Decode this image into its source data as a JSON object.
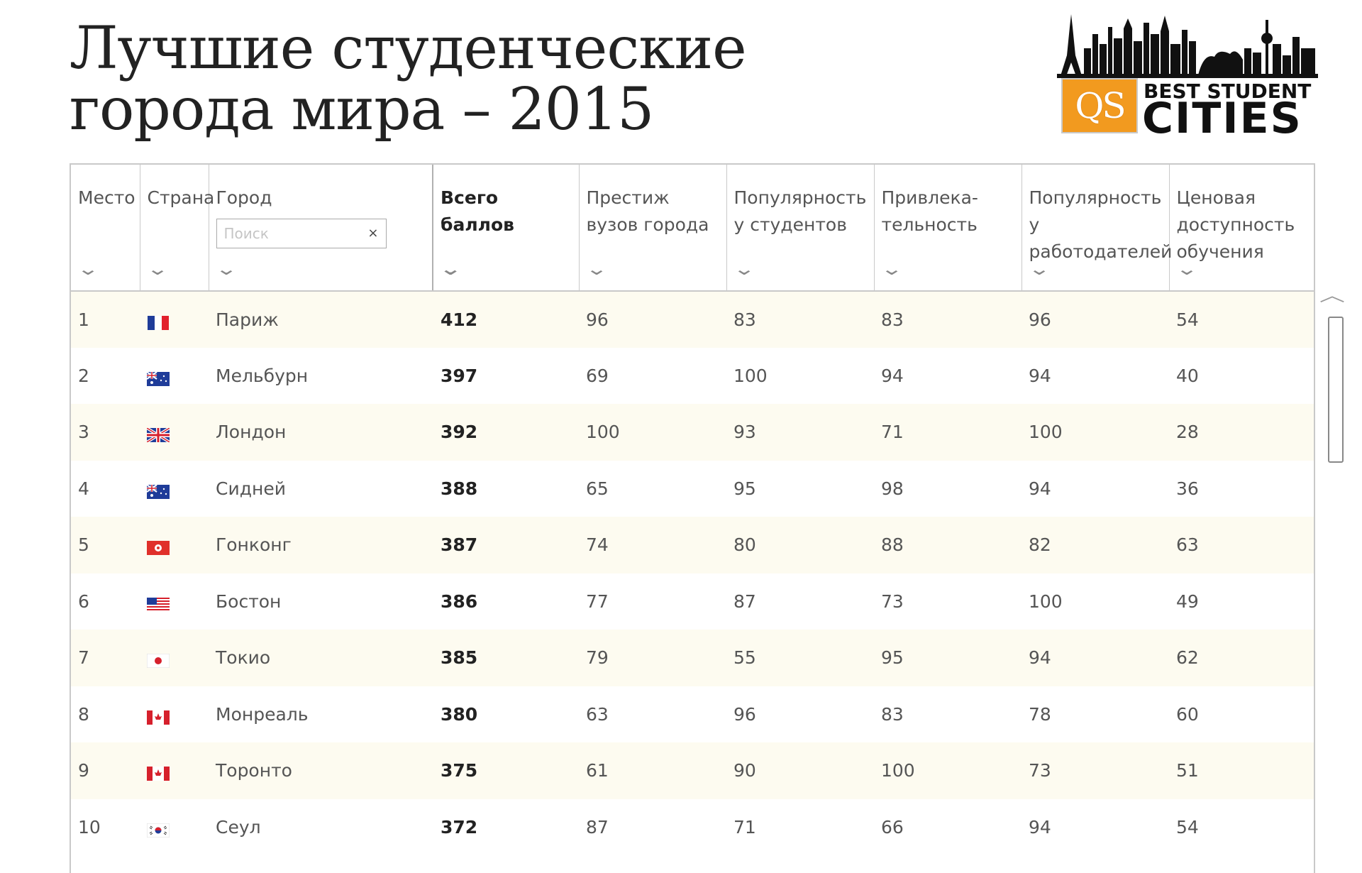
{
  "title": {
    "line1": "Лучшие студенческие",
    "line2": "города мира – 2015"
  },
  "logo": {
    "badge": "QS",
    "line1": "BEST STUDENT",
    "line2": "CITIES",
    "skyline_color": "#111111",
    "badge_color": "#f29a1f"
  },
  "table": {
    "headers": {
      "rank": "Место",
      "country": "Страна",
      "city": "Город",
      "total": "Всего баллов",
      "prestige": "Престиж вузов города",
      "popularity_students": "Популярность у студентов",
      "attractiveness": "Привлека-тельность",
      "popularity_employers": "Популярность у работодателей",
      "affordability": "Ценовая доступность обучения"
    },
    "search": {
      "placeholder": "Поиск",
      "clear": "×"
    },
    "rows": [
      {
        "rank": "1",
        "flag": "france",
        "city": "Париж",
        "total": "412",
        "prestige": "96",
        "students": "83",
        "attract": "83",
        "employers": "96",
        "afford": "54"
      },
      {
        "rank": "2",
        "flag": "australia",
        "city": "Мельбурн",
        "total": "397",
        "prestige": "69",
        "students": "100",
        "attract": "94",
        "employers": "94",
        "afford": "40"
      },
      {
        "rank": "3",
        "flag": "uk",
        "city": "Лондон",
        "total": "392",
        "prestige": "100",
        "students": "93",
        "attract": "71",
        "employers": "100",
        "afford": "28"
      },
      {
        "rank": "4",
        "flag": "australia",
        "city": "Сидней",
        "total": "388",
        "prestige": "65",
        "students": "95",
        "attract": "98",
        "employers": "94",
        "afford": "36"
      },
      {
        "rank": "5",
        "flag": "hongkong",
        "city": "Гонконг",
        "total": "387",
        "prestige": "74",
        "students": "80",
        "attract": "88",
        "employers": "82",
        "afford": "63"
      },
      {
        "rank": "6",
        "flag": "usa",
        "city": "Бостон",
        "total": "386",
        "prestige": "77",
        "students": "87",
        "attract": "73",
        "employers": "100",
        "afford": "49"
      },
      {
        "rank": "7",
        "flag": "japan",
        "city": "Токио",
        "total": "385",
        "prestige": "79",
        "students": "55",
        "attract": "95",
        "employers": "94",
        "afford": "62"
      },
      {
        "rank": "8",
        "flag": "canada",
        "city": "Монреаль",
        "total": "380",
        "prestige": "63",
        "students": "96",
        "attract": "83",
        "employers": "78",
        "afford": "60"
      },
      {
        "rank": "9",
        "flag": "canada",
        "city": "Торонто",
        "total": "375",
        "prestige": "61",
        "students": "90",
        "attract": "100",
        "employers": "73",
        "afford": "51"
      },
      {
        "rank": "10",
        "flag": "korea",
        "city": "Сеул",
        "total": "372",
        "prestige": "87",
        "students": "71",
        "attract": "66",
        "employers": "94",
        "afford": "54"
      }
    ]
  },
  "icons": {
    "sort": "chevron-down-icon",
    "scroll": "chevron-up-icon"
  }
}
